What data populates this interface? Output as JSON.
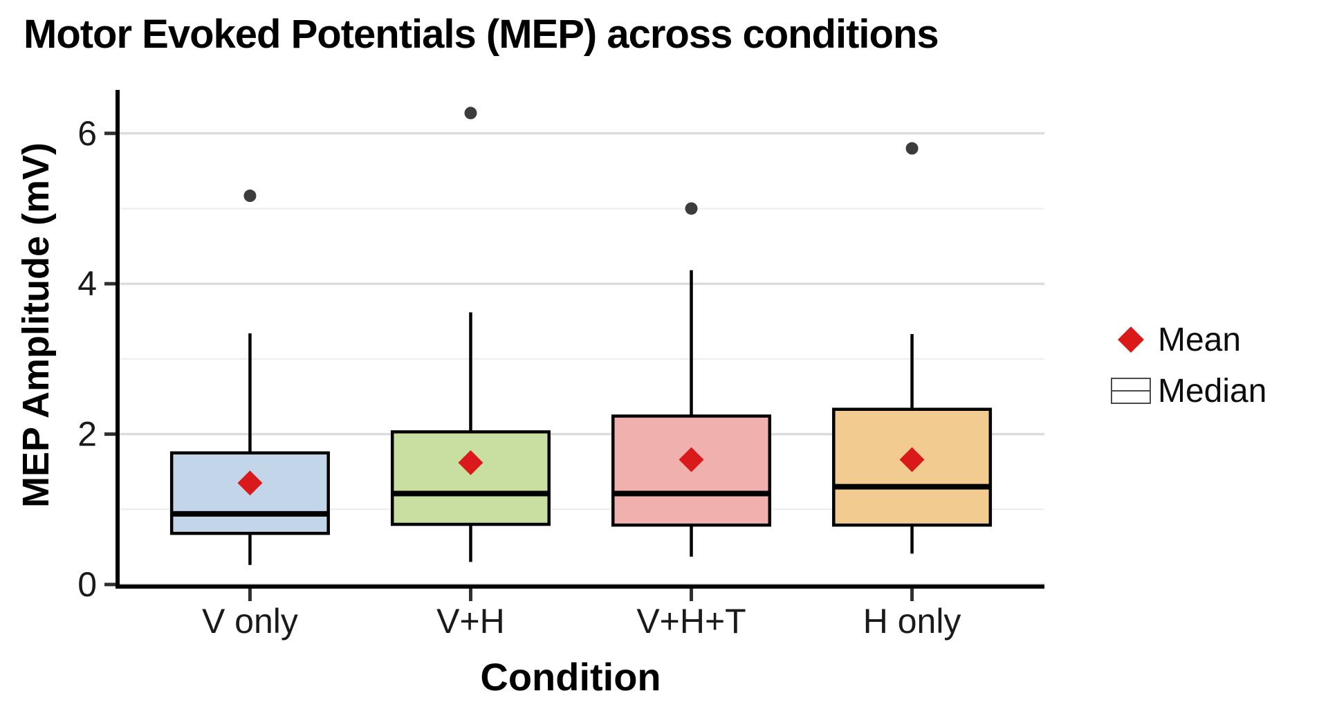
{
  "chart_data": {
    "type": "boxplot",
    "title": "Motor Evoked Potentials (MEP) across conditions",
    "xlabel": "Condition",
    "ylabel": "MEP Amplitude (mV)",
    "categories": [
      "V only",
      "V+H",
      "V+H+T",
      "H only"
    ],
    "ylim": [
      0,
      6.55
    ],
    "yticks": [
      0,
      2,
      4,
      6
    ],
    "minor_gridlines": [
      1,
      3,
      5
    ],
    "grid": "horizontal major and minor lines, no vertical grid",
    "legend": {
      "position": "right",
      "items": [
        {
          "label": "Mean",
          "symbol": "red-diamond"
        },
        {
          "label": "Median",
          "symbol": "box-with-center-line"
        }
      ]
    },
    "series": [
      {
        "category": "V only",
        "fill": "#c3d5e8",
        "whisker_low": 0.26,
        "q1": 0.68,
        "median": 0.94,
        "mean": 1.35,
        "q3": 1.75,
        "whisker_high": 3.34,
        "outliers": [
          5.17
        ]
      },
      {
        "category": "V+H",
        "fill": "#c9dea1",
        "whisker_low": 0.3,
        "q1": 0.8,
        "median": 1.21,
        "mean": 1.62,
        "q3": 2.03,
        "whisker_high": 3.62,
        "outliers": [
          6.27
        ]
      },
      {
        "category": "V+H+T",
        "fill": "#efb0ae",
        "whisker_low": 0.37,
        "q1": 0.79,
        "median": 1.21,
        "mean": 1.66,
        "q3": 2.24,
        "whisker_high": 4.18,
        "outliers": [
          5.0
        ]
      },
      {
        "category": "H only",
        "fill": "#f2cb90",
        "whisker_low": 0.41,
        "q1": 0.79,
        "median": 1.3,
        "mean": 1.66,
        "q3": 2.33,
        "whisker_high": 3.33,
        "outliers": [
          5.8
        ]
      }
    ],
    "colors": {
      "mean_marker": "#da1a1a",
      "outlier_dot": "#3c3c3c",
      "box_border": "#000000",
      "median_line": "#000000",
      "whisker": "#000000",
      "axis_line": "#000000",
      "tick_mark": "#2f2f2f",
      "tick_label": "#1a1a1a",
      "major_grid": "#dcdcdc",
      "minor_grid": "#ececec",
      "background": "#ffffff"
    }
  }
}
